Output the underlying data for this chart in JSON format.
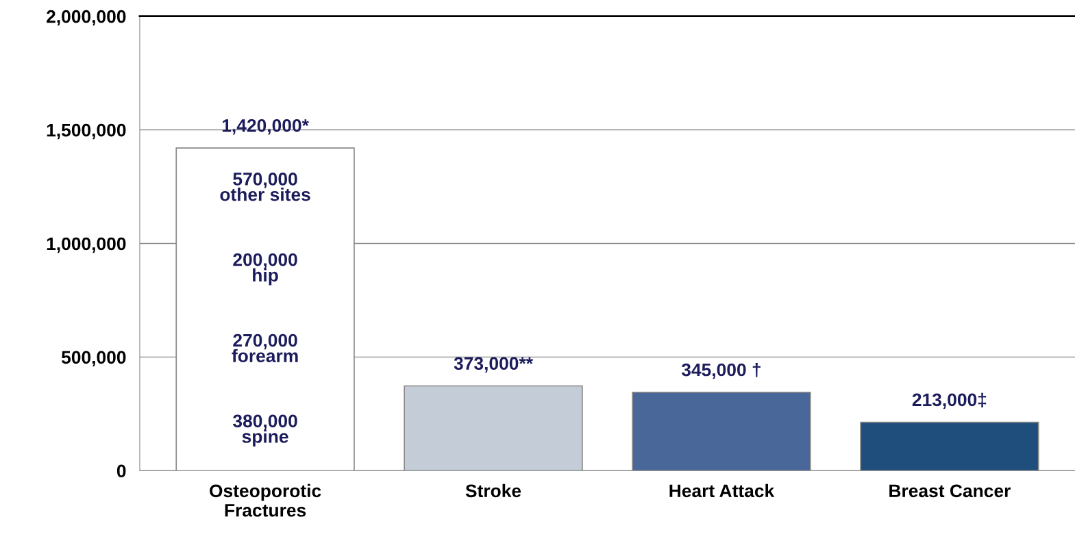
{
  "chart_data": {
    "type": "bar",
    "categories": [
      "Osteoporotic\nFractures",
      "Stroke",
      "Heart Attack",
      "Breast Cancer"
    ],
    "values": [
      1420000,
      373000,
      345000,
      213000
    ],
    "colors": [
      "#ffffff",
      "#c3ccd7",
      "#4a679a",
      "#1f4e7c"
    ],
    "value_labels": [
      "1,420,000*",
      "373,000**",
      "345,000 †",
      "213,000‡"
    ],
    "ylim": [
      0,
      2000000
    ],
    "yticks": [
      {
        "value": 0,
        "label": "0"
      },
      {
        "value": 500000,
        "label": "500,000"
      },
      {
        "value": 1000000,
        "label": "1,000,000"
      },
      {
        "value": 1500000,
        "label": "1,500,000"
      },
      {
        "value": 2000000,
        "label": "2,000,000"
      }
    ],
    "grid": "y",
    "annotations": [
      "570,000\nother sites",
      "200,000\nhip",
      "270,000\nforearm",
      "380,000\nspine"
    ]
  }
}
